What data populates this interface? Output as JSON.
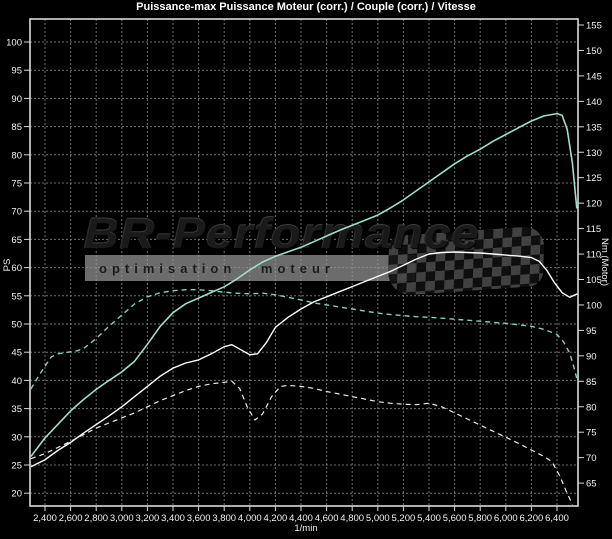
{
  "chart_data": {
    "type": "line",
    "title": "Puissance-max Puissance Moteur (corr.) / Couple (corr.) / Vitesse",
    "background": "#000000",
    "grid": true,
    "legend": "none",
    "x_axis": {
      "unit": "1/min",
      "min": 2283,
      "max": 6565,
      "tick_values": [
        2400,
        2600,
        2800,
        3000,
        3200,
        3400,
        3600,
        3800,
        4000,
        4200,
        4400,
        4600,
        4800,
        5000,
        5200,
        5400,
        5600,
        5800,
        6000,
        6200,
        6400
      ],
      "tick_labels": [
        "2,400",
        "2,600",
        "2,800",
        "3,000",
        "3,200",
        "3,400",
        "3,600",
        "3,800",
        "4,000",
        "4,200",
        "4,400",
        "4,600",
        "4,800",
        "5,000",
        "5,200",
        "5,400",
        "5,600",
        "5,800",
        "6,000",
        "6,200",
        "6,400"
      ]
    },
    "y_axis_left": {
      "label": "PS",
      "min": 20,
      "max": 100,
      "tick_step": 5,
      "tick_values": [
        100,
        95,
        90,
        85,
        80,
        75,
        70,
        65,
        60,
        55,
        50,
        45,
        40,
        35,
        30,
        25,
        20
      ]
    },
    "y_axis_right": {
      "label": "Nm (Motor)",
      "min": 65,
      "max": 155,
      "tick_step": 5,
      "tick_values": [
        155,
        150,
        145,
        140,
        135,
        130,
        125,
        120,
        115,
        110,
        105,
        100,
        95,
        90,
        85,
        80,
        75,
        70,
        65
      ]
    },
    "colors": {
      "grid": "#6b786b",
      "border": "#d9d9d9",
      "tick_text": "#f2f2f2"
    },
    "series": [
      {
        "name": "puissance-moteur-corr",
        "style": "solid",
        "color": "#9fdecd",
        "axis": "left",
        "width": 1.6,
        "points": [
          [
            2290,
            26.5
          ],
          [
            2400,
            29.8
          ],
          [
            2500,
            32.2
          ],
          [
            2600,
            34.6
          ],
          [
            2700,
            36.6
          ],
          [
            2800,
            38.4
          ],
          [
            2900,
            40.0
          ],
          [
            3000,
            41.5
          ],
          [
            3100,
            43.4
          ],
          [
            3200,
            46.4
          ],
          [
            3300,
            49.6
          ],
          [
            3400,
            52.0
          ],
          [
            3500,
            53.6
          ],
          [
            3600,
            54.6
          ],
          [
            3700,
            55.6
          ],
          [
            3800,
            56.6
          ],
          [
            3900,
            58.0
          ],
          [
            4000,
            59.6
          ],
          [
            4100,
            61.0
          ],
          [
            4200,
            62.0
          ],
          [
            4300,
            62.8
          ],
          [
            4400,
            63.6
          ],
          [
            4500,
            64.6
          ],
          [
            4600,
            65.6
          ],
          [
            4700,
            66.6
          ],
          [
            4800,
            67.5
          ],
          [
            4900,
            68.4
          ],
          [
            5000,
            69.3
          ],
          [
            5100,
            70.6
          ],
          [
            5200,
            72.0
          ],
          [
            5300,
            73.6
          ],
          [
            5400,
            75.2
          ],
          [
            5500,
            76.8
          ],
          [
            5600,
            78.4
          ],
          [
            5700,
            79.8
          ],
          [
            5800,
            81.0
          ],
          [
            5900,
            82.4
          ],
          [
            6000,
            83.6
          ],
          [
            6100,
            84.8
          ],
          [
            6200,
            86.0
          ],
          [
            6300,
            86.9
          ],
          [
            6400,
            87.3
          ],
          [
            6440,
            87.0
          ],
          [
            6480,
            84.5
          ],
          [
            6520,
            78.5
          ],
          [
            6555,
            70.5
          ]
        ]
      },
      {
        "name": "couple-corr",
        "style": "dashed",
        "color": "#85cfba",
        "axis": "right",
        "width": 1.4,
        "points": [
          [
            2290,
            83.5
          ],
          [
            2350,
            86.0
          ],
          [
            2400,
            88.0
          ],
          [
            2450,
            89.8
          ],
          [
            2500,
            90.4
          ],
          [
            2550,
            90.6
          ],
          [
            2600,
            90.8
          ],
          [
            2650,
            91.0
          ],
          [
            2700,
            91.4
          ],
          [
            2800,
            93.4
          ],
          [
            2900,
            95.8
          ],
          [
            3000,
            98.0
          ],
          [
            3100,
            100.2
          ],
          [
            3200,
            101.6
          ],
          [
            3300,
            102.4
          ],
          [
            3400,
            102.8
          ],
          [
            3500,
            103.0
          ],
          [
            3600,
            103.0
          ],
          [
            3700,
            102.8
          ],
          [
            3800,
            102.5
          ],
          [
            3900,
            102.3
          ],
          [
            4000,
            102.2
          ],
          [
            4100,
            102.3
          ],
          [
            4200,
            102.0
          ],
          [
            4300,
            101.5
          ],
          [
            4400,
            101.0
          ],
          [
            4500,
            100.4
          ],
          [
            4600,
            100.0
          ],
          [
            4700,
            99.6
          ],
          [
            4800,
            99.2
          ],
          [
            4900,
            98.8
          ],
          [
            5000,
            98.4
          ],
          [
            5100,
            98.1
          ],
          [
            5200,
            97.9
          ],
          [
            5300,
            97.7
          ],
          [
            5400,
            97.6
          ],
          [
            5500,
            97.4
          ],
          [
            5600,
            97.2
          ],
          [
            5700,
            97.0
          ],
          [
            5800,
            96.8
          ],
          [
            5900,
            96.6
          ],
          [
            6000,
            96.4
          ],
          [
            6100,
            96.1
          ],
          [
            6200,
            95.8
          ],
          [
            6300,
            95.2
          ],
          [
            6400,
            94.2
          ],
          [
            6450,
            92.8
          ],
          [
            6500,
            90.5
          ],
          [
            6530,
            88.0
          ],
          [
            6560,
            85.0
          ]
        ]
      },
      {
        "name": "vitesse",
        "style": "solid",
        "color": "#ffffff",
        "axis": "right",
        "width": 1.4,
        "points": [
          [
            2290,
            68.2
          ],
          [
            2400,
            69.6
          ],
          [
            2500,
            71.4
          ],
          [
            2600,
            73.0
          ],
          [
            2700,
            74.8
          ],
          [
            2800,
            76.5
          ],
          [
            2900,
            78.2
          ],
          [
            3000,
            80.0
          ],
          [
            3100,
            82.0
          ],
          [
            3200,
            84.0
          ],
          [
            3300,
            86.0
          ],
          [
            3400,
            87.6
          ],
          [
            3500,
            88.6
          ],
          [
            3600,
            89.2
          ],
          [
            3700,
            90.4
          ],
          [
            3800,
            91.8
          ],
          [
            3860,
            92.2
          ],
          [
            3930,
            91.2
          ],
          [
            4000,
            90.2
          ],
          [
            4060,
            90.4
          ],
          [
            4130,
            92.6
          ],
          [
            4200,
            95.6
          ],
          [
            4300,
            97.6
          ],
          [
            4400,
            99.2
          ],
          [
            4500,
            100.6
          ],
          [
            4600,
            101.6
          ],
          [
            4700,
            102.6
          ],
          [
            4800,
            103.6
          ],
          [
            4900,
            104.6
          ],
          [
            5000,
            105.6
          ],
          [
            5100,
            106.6
          ],
          [
            5200,
            107.8
          ],
          [
            5300,
            109.0
          ],
          [
            5400,
            110.0
          ],
          [
            5500,
            110.3
          ],
          [
            5600,
            110.4
          ],
          [
            5700,
            110.3
          ],
          [
            5800,
            110.2
          ],
          [
            5900,
            110.0
          ],
          [
            6000,
            109.8
          ],
          [
            6100,
            109.6
          ],
          [
            6200,
            109.3
          ],
          [
            6260,
            108.6
          ],
          [
            6320,
            106.8
          ],
          [
            6380,
            104.4
          ],
          [
            6440,
            102.4
          ],
          [
            6500,
            101.5
          ],
          [
            6560,
            102.2
          ]
        ]
      },
      {
        "name": "courbe-blanche-pointillee",
        "style": "dashed",
        "color": "#ececec",
        "axis": "right",
        "width": 1.2,
        "points": [
          [
            2290,
            69.8
          ],
          [
            2400,
            70.8
          ],
          [
            2500,
            72.0
          ],
          [
            2600,
            73.2
          ],
          [
            2700,
            74.5
          ],
          [
            2800,
            75.8
          ],
          [
            2900,
            76.8
          ],
          [
            3000,
            77.8
          ],
          [
            3100,
            78.8
          ],
          [
            3200,
            80.0
          ],
          [
            3300,
            81.2
          ],
          [
            3400,
            82.2
          ],
          [
            3500,
            83.2
          ],
          [
            3600,
            84.0
          ],
          [
            3700,
            84.5
          ],
          [
            3800,
            84.8
          ],
          [
            3860,
            85.0
          ],
          [
            3920,
            83.6
          ],
          [
            3980,
            80.0
          ],
          [
            4040,
            77.4
          ],
          [
            4100,
            78.6
          ],
          [
            4170,
            82.0
          ],
          [
            4240,
            84.0
          ],
          [
            4300,
            84.2
          ],
          [
            4400,
            84.0
          ],
          [
            4500,
            83.6
          ],
          [
            4600,
            83.0
          ],
          [
            4700,
            82.5
          ],
          [
            4800,
            82.0
          ],
          [
            4900,
            81.5
          ],
          [
            5000,
            81.0
          ],
          [
            5100,
            80.7
          ],
          [
            5200,
            80.5
          ],
          [
            5300,
            80.4
          ],
          [
            5400,
            80.7
          ],
          [
            5500,
            80.0
          ],
          [
            5600,
            78.8
          ],
          [
            5700,
            77.6
          ],
          [
            5800,
            76.4
          ],
          [
            5900,
            75.2
          ],
          [
            6000,
            74.0
          ],
          [
            6100,
            72.8
          ],
          [
            6200,
            71.5
          ],
          [
            6300,
            70.2
          ],
          [
            6360,
            69.2
          ],
          [
            6420,
            66.5
          ],
          [
            6470,
            63.5
          ],
          [
            6520,
            60.8
          ]
        ]
      }
    ]
  },
  "watermark": {
    "brand": "BR-Performance",
    "tagline": "optimisation moteur"
  }
}
